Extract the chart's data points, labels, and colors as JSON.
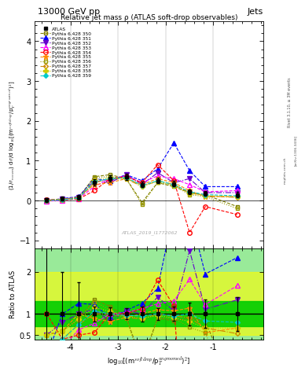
{
  "title": "13000 GeV pp",
  "right_title": "Jets",
  "plot_title": "Relative jet mass ρ (ATLAS soft-drop observables)",
  "xlabel_line1": "log",
  "xlabel": "log$_{10}$[(m$^{soft drop}$/p$_T^{ungroomed}$)$^2$]",
  "ylabel": "(1/σ$_{resum}$) dσ/d log$_{10}$[(m$^{soft drop}$/p$_T^{ungroomed}$)$^2$]",
  "ylabel_ratio": "Ratio to ATLAS",
  "watermark": "ATLAS_2019_I1772062",
  "rivet_label": "Rivet 3.1.10, ≥ 3M events",
  "arxiv_label": "[arXiv:1306.3436]",
  "mcplots_label": "mcplots.cern.ch",
  "xlim": [
    -4.75,
    0.05
  ],
  "ylim_main": [
    -1.2,
    4.5
  ],
  "ylim_ratio": [
    0.4,
    2.55
  ],
  "xticks": [
    -4,
    -3,
    -2,
    -1
  ],
  "yticks_main": [
    -1,
    0,
    1,
    2,
    3,
    4
  ],
  "x_data": [
    -4.5,
    -4.17,
    -3.83,
    -3.5,
    -3.17,
    -2.83,
    -2.5,
    -2.17,
    -1.83,
    -1.5,
    -1.17,
    -0.5
  ],
  "atlas_y": [
    0.02,
    0.05,
    0.08,
    0.45,
    0.55,
    0.6,
    0.4,
    0.5,
    0.42,
    0.22,
    0.18,
    0.15
  ],
  "atlas_yerr": [
    0.05,
    0.05,
    0.06,
    0.08,
    0.08,
    0.08,
    0.07,
    0.07,
    0.07,
    0.06,
    0.06,
    0.06
  ],
  "series": [
    {
      "label": "Pythia 6.428 350",
      "color": "#808000",
      "marker": "s",
      "markerfacecolor": "none",
      "linestyle": "--",
      "y": [
        0.01,
        0.03,
        0.07,
        0.6,
        0.65,
        0.55,
        -0.05,
        0.45,
        0.35,
        0.2,
        0.15,
        -0.15
      ]
    },
    {
      "label": "Pythia 6.428 351",
      "color": "#0000ff",
      "marker": "^",
      "markerfacecolor": "#0000ff",
      "linestyle": "--",
      "y": [
        0.0,
        0.05,
        0.1,
        0.55,
        0.5,
        0.65,
        0.5,
        0.8,
        1.45,
        0.75,
        0.35,
        0.35
      ]
    },
    {
      "label": "Pythia 6.428 352",
      "color": "#6600cc",
      "marker": "v",
      "markerfacecolor": "#6600cc",
      "linestyle": "-.",
      "y": [
        0.01,
        0.04,
        0.08,
        0.5,
        0.45,
        0.65,
        0.4,
        0.7,
        0.45,
        0.55,
        0.2,
        0.2
      ]
    },
    {
      "label": "Pythia 6.428 353",
      "color": "#ff00ff",
      "marker": "^",
      "markerfacecolor": "none",
      "linestyle": "--",
      "y": [
        -0.02,
        0.01,
        0.05,
        0.35,
        0.55,
        0.62,
        0.45,
        0.62,
        0.55,
        0.4,
        0.22,
        0.25
      ]
    },
    {
      "label": "Pythia 6.428 354",
      "color": "#ff0000",
      "marker": "o",
      "markerfacecolor": "none",
      "linestyle": "--",
      "y": [
        0.02,
        0.02,
        0.04,
        0.25,
        0.55,
        0.6,
        0.45,
        0.9,
        0.5,
        -0.8,
        -0.15,
        -0.35
      ]
    },
    {
      "label": "Pythia 6.428 355",
      "color": "#ff8c00",
      "marker": "*",
      "markerfacecolor": "#ff8c00",
      "linestyle": "--",
      "y": [
        0.01,
        0.03,
        0.08,
        0.4,
        0.45,
        0.55,
        0.4,
        0.55,
        0.45,
        0.25,
        0.1,
        0.1
      ]
    },
    {
      "label": "Pythia 6.428 356",
      "color": "#999900",
      "marker": "s",
      "markerfacecolor": "none",
      "linestyle": ":",
      "y": [
        0.01,
        0.03,
        0.07,
        0.58,
        0.6,
        0.55,
        -0.1,
        0.45,
        0.38,
        0.15,
        0.1,
        -0.2
      ]
    },
    {
      "label": "Pythia 6.428 357",
      "color": "#cc8800",
      "marker": "D",
      "markerfacecolor": "none",
      "linestyle": "-.",
      "y": [
        0.0,
        0.02,
        0.06,
        0.45,
        0.55,
        0.55,
        0.35,
        0.5,
        0.4,
        0.2,
        0.12,
        0.08
      ]
    },
    {
      "label": "Pythia 6.428 358",
      "color": "#cccc00",
      "marker": "P",
      "markerfacecolor": "#cccc00",
      "linestyle": ":",
      "y": [
        0.01,
        0.03,
        0.07,
        0.52,
        0.58,
        0.56,
        0.36,
        0.48,
        0.38,
        0.18,
        0.12,
        0.1
      ]
    },
    {
      "label": "Pythia 6.428 359",
      "color": "#00cccc",
      "marker": "D",
      "markerfacecolor": "#00cccc",
      "linestyle": "--",
      "y": [
        0.0,
        0.02,
        0.06,
        0.48,
        0.55,
        0.58,
        0.38,
        0.5,
        0.4,
        0.22,
        0.15,
        0.12
      ]
    }
  ],
  "green_color": "#00cc00",
  "yellow_color": "#ffff00",
  "background_color": "#ffffff"
}
